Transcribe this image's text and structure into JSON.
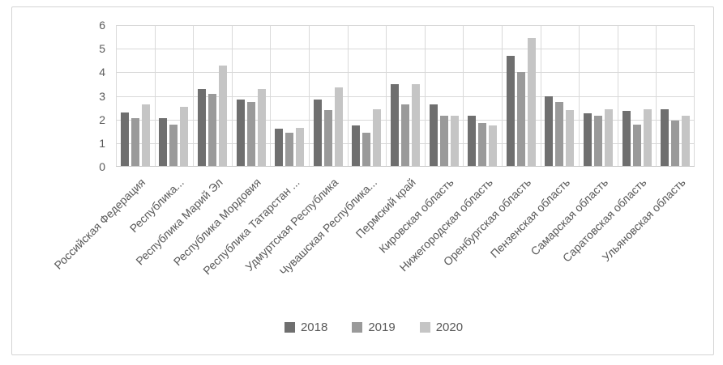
{
  "window": {
    "background": "#ffffff",
    "frame_border_color": "#d4d4d4"
  },
  "chart_data": {
    "type": "bar",
    "title": "",
    "xlabel": "",
    "ylabel": "",
    "categories": [
      "Российская Федерация",
      "Республика...",
      "Республика Марий Эл",
      "Республика Мордовия",
      "Республика Татарстан ...",
      "Удмуртская Республика",
      "Чувашская Республика...",
      "Пермский край",
      "Кировская область",
      "Нижегородская область",
      "Оренбургская область",
      "Пензенская область",
      "Самарская область",
      "Саратовская область",
      "Ульяновская область"
    ],
    "series": [
      {
        "name": "2018",
        "color": "#6f6f6f",
        "values": [
          2.3,
          2.05,
          3.3,
          2.85,
          1.6,
          2.85,
          1.75,
          3.5,
          2.65,
          2.15,
          4.7,
          3.0,
          2.25,
          2.35,
          2.45
        ]
      },
      {
        "name": "2019",
        "color": "#9a9a9a",
        "values": [
          2.05,
          1.8,
          3.1,
          2.75,
          1.45,
          2.4,
          1.45,
          2.65,
          2.15,
          1.85,
          4.0,
          2.75,
          2.15,
          1.8,
          1.95
        ]
      },
      {
        "name": "2020",
        "color": "#c5c5c5",
        "values": [
          2.65,
          2.55,
          4.3,
          3.3,
          1.65,
          3.35,
          2.45,
          3.5,
          2.15,
          1.75,
          5.45,
          2.4,
          2.45,
          2.45,
          2.15
        ]
      }
    ],
    "ylim": [
      0,
      6
    ],
    "yticks": [
      0,
      1,
      2,
      3,
      4,
      5,
      6
    ],
    "grid": "both",
    "gridline_color": "#d9d9d9",
    "axis_line_color": "#c6c6c6",
    "text_color": "#595959",
    "legend_position": "bottom",
    "legend_labels": [
      "2018",
      "2019",
      "2020"
    ]
  }
}
